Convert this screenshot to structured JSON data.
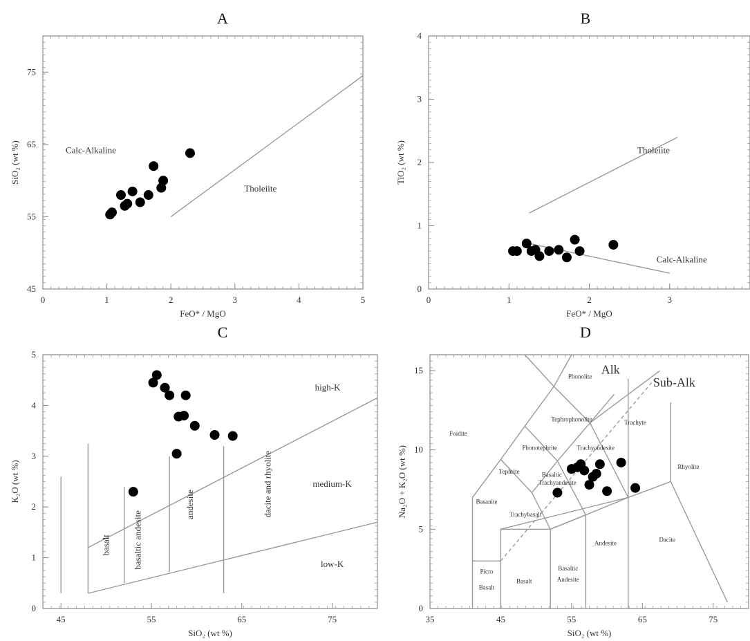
{
  "panels": {
    "a": "A",
    "b": "B",
    "c": "C",
    "d": "D"
  },
  "chart_data": [
    {
      "id": "A",
      "type": "scatter",
      "xlabel": "FeO* / MgO",
      "ylabel": "SiO₂ (wt %)",
      "xlim": [
        0,
        5
      ],
      "ylim": [
        45,
        80
      ],
      "xticks": [
        "0",
        "1",
        "2",
        "3",
        "4",
        "5"
      ],
      "yticks": [
        "45",
        "55",
        "65",
        "75"
      ],
      "points": [
        {
          "x": 1.05,
          "y": 55.3
        },
        {
          "x": 1.08,
          "y": 55.6
        },
        {
          "x": 1.22,
          "y": 58.0
        },
        {
          "x": 1.28,
          "y": 56.5
        },
        {
          "x": 1.32,
          "y": 56.8
        },
        {
          "x": 1.4,
          "y": 58.5
        },
        {
          "x": 1.52,
          "y": 57.0
        },
        {
          "x": 1.65,
          "y": 58.0
        },
        {
          "x": 1.73,
          "y": 62.0
        },
        {
          "x": 1.85,
          "y": 59.0
        },
        {
          "x": 1.88,
          "y": 60.0
        },
        {
          "x": 2.3,
          "y": 63.8
        }
      ],
      "boundary": [
        {
          "x": 2.0,
          "y": 55.0
        },
        {
          "x": 5.0,
          "y": 74.5
        }
      ],
      "field_labels": [
        {
          "text": "Calc-Alkaline",
          "x": 0.75,
          "y": 63.8
        },
        {
          "text": "Tholeiite",
          "x": 3.4,
          "y": 58.5
        }
      ]
    },
    {
      "id": "B",
      "type": "scatter",
      "xlabel": "FeO* / MgO",
      "ylabel": "TiO₂ (wt %)",
      "xlim": [
        0,
        4
      ],
      "ylim": [
        0,
        4
      ],
      "xticks": [
        "0",
        "1",
        "2",
        "3"
      ],
      "yticks": [
        "0",
        "1",
        "2",
        "3",
        "4"
      ],
      "points": [
        {
          "x": 1.05,
          "y": 0.6
        },
        {
          "x": 1.1,
          "y": 0.6
        },
        {
          "x": 1.22,
          "y": 0.72
        },
        {
          "x": 1.28,
          "y": 0.6
        },
        {
          "x": 1.33,
          "y": 0.62
        },
        {
          "x": 1.38,
          "y": 0.52
        },
        {
          "x": 1.5,
          "y": 0.6
        },
        {
          "x": 1.62,
          "y": 0.62
        },
        {
          "x": 1.72,
          "y": 0.5
        },
        {
          "x": 1.82,
          "y": 0.78
        },
        {
          "x": 1.88,
          "y": 0.6
        },
        {
          "x": 2.3,
          "y": 0.7
        }
      ],
      "boundaries": [
        [
          {
            "x": 1.25,
            "y": 1.2
          },
          {
            "x": 3.1,
            "y": 2.4
          }
        ],
        [
          {
            "x": 1.25,
            "y": 0.72
          },
          {
            "x": 3.0,
            "y": 0.25
          }
        ]
      ],
      "field_labels": [
        {
          "text": "Tholeiite",
          "x": 2.8,
          "y": 2.15
        },
        {
          "text": "Calc-Alkaline",
          "x": 3.15,
          "y": 0.42
        }
      ]
    },
    {
      "id": "C",
      "type": "scatter",
      "xlabel": "SiO₂ (wt %)",
      "ylabel": "K₂O (wt %)",
      "xlim": [
        43,
        80
      ],
      "ylim": [
        0,
        5
      ],
      "xticks": [
        "45",
        "55",
        "65",
        "75"
      ],
      "yticks": [
        "0",
        "1",
        "2",
        "3",
        "4",
        "5"
      ],
      "points": [
        {
          "x": 53.0,
          "y": 2.3
        },
        {
          "x": 55.2,
          "y": 4.45
        },
        {
          "x": 55.6,
          "y": 4.6
        },
        {
          "x": 56.5,
          "y": 4.35
        },
        {
          "x": 57.0,
          "y": 4.2
        },
        {
          "x": 57.8,
          "y": 3.05
        },
        {
          "x": 58.0,
          "y": 3.78
        },
        {
          "x": 58.6,
          "y": 3.8
        },
        {
          "x": 58.8,
          "y": 4.2
        },
        {
          "x": 59.8,
          "y": 3.6
        },
        {
          "x": 62.0,
          "y": 3.42
        },
        {
          "x": 64.0,
          "y": 3.4
        }
      ],
      "boundaries": [
        [
          {
            "x": 48,
            "y": 1.2
          },
          {
            "x": 80,
            "y": 4.15
          }
        ],
        [
          {
            "x": 48,
            "y": 0.3
          },
          {
            "x": 80,
            "y": 1.7
          }
        ],
        [
          {
            "x": 45,
            "y": 0.3
          },
          {
            "x": 45,
            "y": 2.6
          }
        ],
        [
          {
            "x": 48,
            "y": 0.3
          },
          {
            "x": 48,
            "y": 3.25
          }
        ],
        [
          {
            "x": 52,
            "y": 0.5
          },
          {
            "x": 52,
            "y": 2.4
          }
        ],
        [
          {
            "x": 57,
            "y": 0.72
          },
          {
            "x": 57,
            "y": 3.0
          }
        ],
        [
          {
            "x": 63,
            "y": 0.3
          },
          {
            "x": 63,
            "y": 3.2
          }
        ]
      ],
      "field_labels": [
        {
          "text": "high-K",
          "x": 74.5,
          "y": 4.3,
          "rot": 0
        },
        {
          "text": "medium-K",
          "x": 75.0,
          "y": 2.4,
          "rot": 0
        },
        {
          "text": "low-K",
          "x": 75.0,
          "y": 0.82,
          "rot": 0
        },
        {
          "text": "basalt",
          "x": 50.3,
          "y": 1.25,
          "rot": -90
        },
        {
          "text": "basaltic andesite",
          "x": 53.8,
          "y": 1.35,
          "rot": -90
        },
        {
          "text": "andesite",
          "x": 59.6,
          "y": 2.05,
          "rot": -90
        },
        {
          "text": "dacite and rhyolite",
          "x": 68.2,
          "y": 2.45,
          "rot": -90
        }
      ]
    },
    {
      "id": "D",
      "type": "scatter",
      "xlabel": "SiO₂ (wt %)",
      "ylabel": "Na₂O + K₂O (wt %)",
      "xlim": [
        35,
        80
      ],
      "ylim": [
        0,
        16
      ],
      "xticks": [
        "35",
        "45",
        "55",
        "65",
        "75"
      ],
      "yticks": [
        "0",
        "5",
        "10",
        "15"
      ],
      "points": [
        {
          "x": 53.0,
          "y": 7.3
        },
        {
          "x": 55.0,
          "y": 8.8
        },
        {
          "x": 55.8,
          "y": 8.9
        },
        {
          "x": 56.3,
          "y": 9.1
        },
        {
          "x": 56.8,
          "y": 8.7
        },
        {
          "x": 57.5,
          "y": 7.8
        },
        {
          "x": 58.0,
          "y": 8.3
        },
        {
          "x": 58.5,
          "y": 8.5
        },
        {
          "x": 59.0,
          "y": 9.1
        },
        {
          "x": 60.0,
          "y": 7.4
        },
        {
          "x": 62.0,
          "y": 9.2
        },
        {
          "x": 64.0,
          "y": 7.6
        }
      ],
      "boundaries": [
        [
          {
            "x": 41,
            "y": 0
          },
          {
            "x": 41,
            "y": 7
          },
          {
            "x": 45,
            "y": 9.4
          },
          {
            "x": 48.4,
            "y": 11.5
          },
          {
            "x": 52.5,
            "y": 14
          },
          {
            "x": 55,
            "y": 16
          }
        ],
        [
          {
            "x": 45,
            "y": 0
          },
          {
            "x": 45,
            "y": 5
          },
          {
            "x": 63,
            "y": 7
          },
          {
            "x": 69,
            "y": 8
          },
          {
            "x": 77,
            "y": 0.4
          }
        ],
        [
          {
            "x": 41,
            "y": 3
          },
          {
            "x": 45,
            "y": 3
          }
        ],
        [
          {
            "x": 45,
            "y": 5
          },
          {
            "x": 52,
            "y": 5
          },
          {
            "x": 57,
            "y": 5.9
          },
          {
            "x": 63,
            "y": 7
          }
        ],
        [
          {
            "x": 52,
            "y": 0
          },
          {
            "x": 52,
            "y": 5
          },
          {
            "x": 57,
            "y": 5.9
          },
          {
            "x": 57,
            "y": 0
          }
        ],
        [
          {
            "x": 63,
            "y": 0
          },
          {
            "x": 63,
            "y": 7
          },
          {
            "x": 63,
            "y": 14.5
          }
        ],
        [
          {
            "x": 45,
            "y": 9.4
          },
          {
            "x": 49.4,
            "y": 7.3
          },
          {
            "x": 52,
            "y": 5
          }
        ],
        [
          {
            "x": 48.4,
            "y": 11.5
          },
          {
            "x": 53,
            "y": 9.3
          },
          {
            "x": 57,
            "y": 5.9
          }
        ],
        [
          {
            "x": 52.5,
            "y": 14
          },
          {
            "x": 57.6,
            "y": 11.7
          },
          {
            "x": 63,
            "y": 7
          }
        ],
        [
          {
            "x": 49.4,
            "y": 7.3
          },
          {
            "x": 53,
            "y": 9.3
          },
          {
            "x": 57.6,
            "y": 11.7
          },
          {
            "x": 61,
            "y": 13.5
          }
        ],
        [
          {
            "x": 69,
            "y": 8
          },
          {
            "x": 69,
            "y": 13
          }
        ],
        [
          {
            "x": 57.6,
            "y": 11.7
          },
          {
            "x": 67.5,
            "y": 15
          }
        ],
        [
          {
            "x": 52.5,
            "y": 14
          },
          {
            "x": 48.4,
            "y": 16
          }
        ]
      ],
      "dashed_boundaries": [
        [
          {
            "x": 45,
            "y": 3
          },
          {
            "x": 67,
            "y": 14.6
          }
        ]
      ],
      "field_labels": [
        {
          "text": "Phonolite",
          "x": 56.2,
          "y": 14.5,
          "big": false
        },
        {
          "text": "Tephrophonolite",
          "x": 55.0,
          "y": 11.8,
          "big": false
        },
        {
          "text": "Foidite",
          "x": 39.0,
          "y": 10.9,
          "big": false
        },
        {
          "text": "Phonotephrite",
          "x": 50.5,
          "y": 10.0,
          "big": false
        },
        {
          "text": "Trachyandesite",
          "x": 58.4,
          "y": 10.0,
          "big": false
        },
        {
          "text": "Trachyte",
          "x": 64.0,
          "y": 11.6,
          "big": false
        },
        {
          "text": "Tephrite",
          "x": 46.2,
          "y": 8.5,
          "big": false
        },
        {
          "text": "Basaltic",
          "x": 52.2,
          "y": 8.3,
          "big": false
        },
        {
          "text": "Trachyandesite",
          "x": 53.0,
          "y": 7.8,
          "big": false
        },
        {
          "text": "Basanite",
          "x": 43.0,
          "y": 6.6,
          "big": false
        },
        {
          "text": "Trachybasalt",
          "x": 48.5,
          "y": 5.8,
          "big": false
        },
        {
          "text": "Rhyolite",
          "x": 71.5,
          "y": 8.8,
          "big": false
        },
        {
          "text": "Andesite",
          "x": 59.8,
          "y": 4.0,
          "big": false
        },
        {
          "text": "Dacite",
          "x": 68.5,
          "y": 4.2,
          "big": false
        },
        {
          "text": "Picro",
          "x": 43.0,
          "y": 2.2,
          "big": false
        },
        {
          "text": "Basalt",
          "x": 43.0,
          "y": 1.2,
          "big": false
        },
        {
          "text": "Basalt",
          "x": 48.3,
          "y": 1.6,
          "big": false
        },
        {
          "text": "Basaltic",
          "x": 54.5,
          "y": 2.4,
          "big": false
        },
        {
          "text": "Andesite",
          "x": 54.5,
          "y": 1.7,
          "big": false
        },
        {
          "text": "Alk",
          "x": 60.5,
          "y": 14.8,
          "big": true
        },
        {
          "text": "Sub-Alk",
          "x": 69.5,
          "y": 14.0,
          "big": true
        }
      ]
    }
  ]
}
